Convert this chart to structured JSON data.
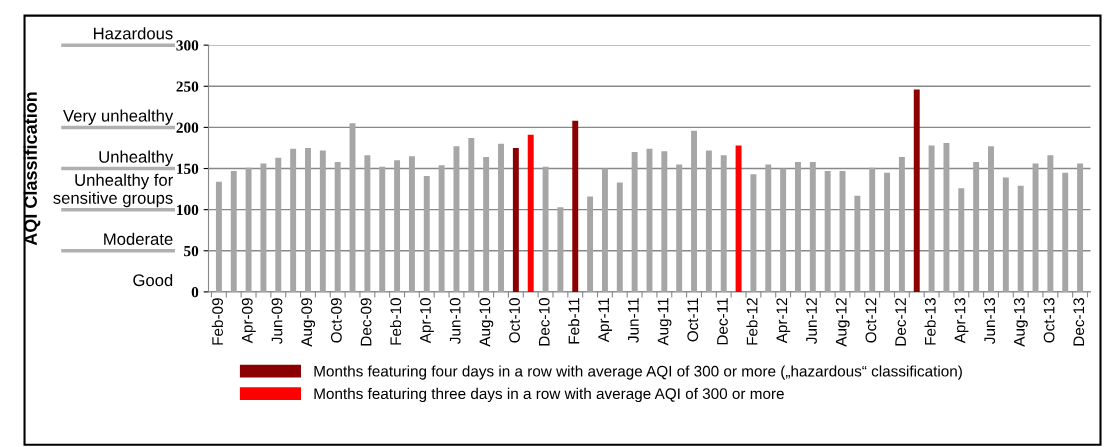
{
  "chart_data": {
    "type": "bar",
    "categories": [
      "Feb-09",
      null,
      "Apr-09",
      null,
      "Jun-09",
      null,
      "Aug-09",
      null,
      "Oct-09",
      null,
      "Dec-09",
      null,
      "Feb-10",
      null,
      "Apr-10",
      null,
      "Jun-10",
      null,
      "Aug-10",
      null,
      "Oct-10",
      null,
      "Dec-10",
      null,
      "Feb-11",
      null,
      "Apr-11",
      null,
      "Jun-11",
      null,
      "Aug-11",
      null,
      "Oct-11",
      null,
      "Dec-11",
      null,
      "Feb-12",
      null,
      "Apr-12",
      null,
      "Jun-12",
      null,
      "Aug-12",
      null,
      "Oct-12",
      null,
      "Dec-12",
      null,
      "Feb-13",
      null,
      "Apr-13",
      null,
      "Jun-13",
      null,
      "Aug-13",
      null,
      "Oct-13",
      null,
      "Dec-13"
    ],
    "series": [
      {
        "color": "#a6a6a6",
        "values": [
          134,
          147,
          151,
          156,
          163,
          174,
          175,
          172,
          158,
          205,
          166,
          152,
          160,
          165,
          141,
          154,
          177,
          187,
          164,
          180,
          null,
          null,
          152,
          103,
          null,
          116,
          150,
          133,
          170,
          174,
          171,
          155,
          196,
          172,
          166,
          null,
          143,
          155,
          150,
          158,
          158,
          147,
          147,
          117,
          151,
          145,
          164,
          null,
          178,
          181,
          126,
          158,
          177,
          139,
          129,
          156,
          166,
          145,
          156
        ]
      },
      {
        "name": "Months featuring four days in a row with average AQI of 300 or more („hazardous“ classification)",
        "color": "#8b0000",
        "values": [
          null,
          null,
          null,
          null,
          null,
          null,
          null,
          null,
          null,
          null,
          null,
          null,
          null,
          null,
          null,
          null,
          null,
          null,
          null,
          null,
          175,
          null,
          null,
          null,
          208,
          null,
          null,
          null,
          null,
          null,
          null,
          null,
          null,
          null,
          null,
          null,
          null,
          null,
          null,
          null,
          null,
          null,
          null,
          null,
          null,
          null,
          null,
          246,
          null,
          null,
          null,
          null,
          null,
          null,
          null,
          null,
          null,
          null,
          null
        ]
      },
      {
        "name": "Months featuring three days in a row with average AQI of 300 or more",
        "color": "#ff0000",
        "values": [
          null,
          null,
          null,
          null,
          null,
          null,
          null,
          null,
          null,
          null,
          null,
          null,
          null,
          null,
          null,
          null,
          null,
          null,
          null,
          null,
          null,
          191,
          null,
          null,
          null,
          null,
          null,
          null,
          null,
          null,
          null,
          null,
          null,
          null,
          null,
          178,
          null,
          null,
          null,
          null,
          null,
          null,
          null,
          null,
          null,
          null,
          null,
          null,
          null,
          null,
          null,
          null,
          null,
          null,
          null,
          null,
          null,
          null,
          null
        ]
      }
    ],
    "ylim": [
      0,
      300
    ],
    "yticks": [
      0,
      50,
      100,
      150,
      200,
      250,
      300
    ],
    "grid": "y",
    "legend": "bottom",
    "annotations": [
      "AQI Classification",
      "Hazardous",
      "Very unhealthy",
      "Unhealthy",
      "Unhealthy for\nsensitive groups",
      "Moderate",
      "Good"
    ]
  }
}
